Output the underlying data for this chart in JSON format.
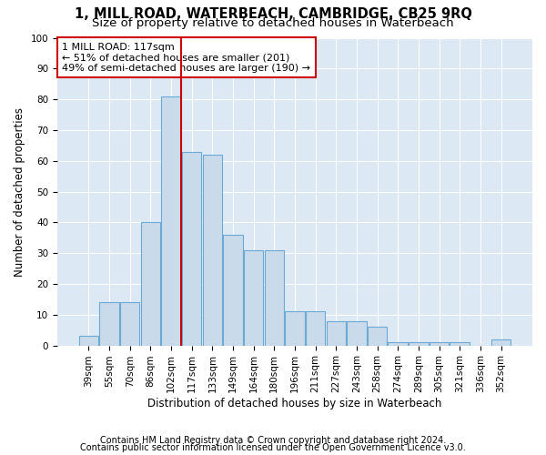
{
  "title1": "1, MILL ROAD, WATERBEACH, CAMBRIDGE, CB25 9RQ",
  "title2": "Size of property relative to detached houses in Waterbeach",
  "xlabel": "Distribution of detached houses by size in Waterbeach",
  "ylabel": "Number of detached properties",
  "categories": [
    "39sqm",
    "55sqm",
    "70sqm",
    "86sqm",
    "102sqm",
    "117sqm",
    "133sqm",
    "149sqm",
    "164sqm",
    "180sqm",
    "196sqm",
    "211sqm",
    "227sqm",
    "243sqm",
    "258sqm",
    "274sqm",
    "289sqm",
    "305sqm",
    "321sqm",
    "336sqm",
    "352sqm"
  ],
  "values": [
    3,
    14,
    14,
    40,
    81,
    63,
    62,
    36,
    31,
    31,
    11,
    11,
    8,
    8,
    6,
    1,
    1,
    1,
    1,
    0,
    2
  ],
  "bar_color": "#c9daea",
  "bar_edge_color": "#6aaad4",
  "vline_color": "#cc0000",
  "annotation_title": "1 MILL ROAD: 117sqm",
  "annotation_line2": "← 51% of detached houses are smaller (201)",
  "annotation_line3": "49% of semi-detached houses are larger (190) →",
  "annotation_box_color": "#ffffff",
  "annotation_box_edge": "#cc0000",
  "ylim": [
    0,
    100
  ],
  "yticks": [
    0,
    10,
    20,
    30,
    40,
    50,
    60,
    70,
    80,
    90,
    100
  ],
  "footnote1": "Contains HM Land Registry data © Crown copyright and database right 2024.",
  "footnote2": "Contains public sector information licensed under the Open Government Licence v3.0.",
  "fig_bg_color": "#ffffff",
  "plot_bg_color": "#dce9f5",
  "title_fontsize": 10.5,
  "subtitle_fontsize": 9.5,
  "axis_label_fontsize": 8.5,
  "tick_fontsize": 7.5,
  "annotation_fontsize": 8,
  "footnote_fontsize": 7
}
